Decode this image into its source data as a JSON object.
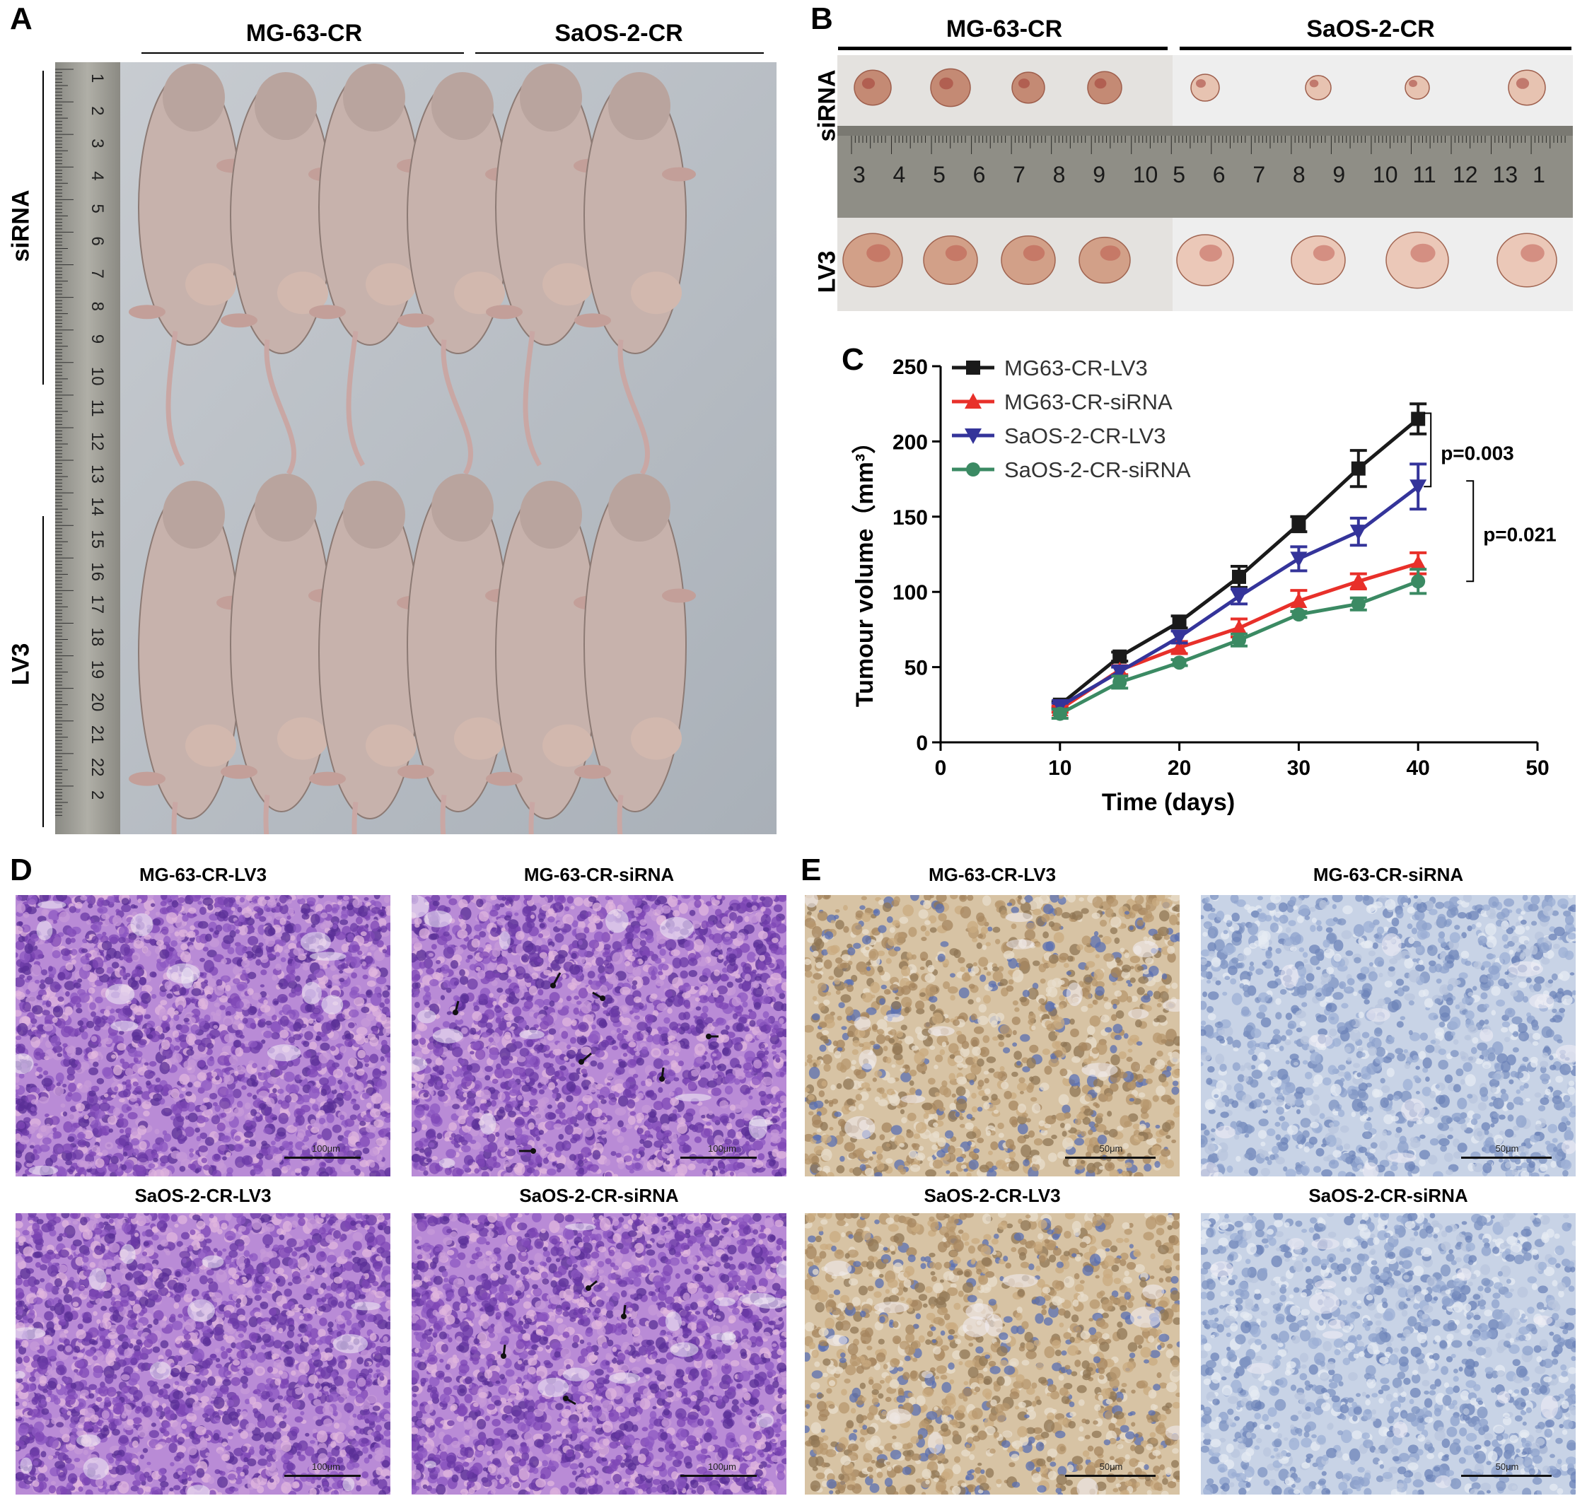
{
  "panelA": {
    "letter": "A",
    "groups": [
      "MG-63-CR",
      "SaOS-2-CR"
    ],
    "rows": [
      "siRNA",
      "LV3"
    ],
    "ruler_ticks": [
      "1",
      "2",
      "3",
      "4",
      "5",
      "6",
      "7",
      "8",
      "9",
      "10",
      "11",
      "12",
      "13",
      "14",
      "15",
      "16",
      "17",
      "18",
      "19",
      "20",
      "21",
      "22",
      "2"
    ]
  },
  "panelB": {
    "letter": "B",
    "groups": [
      "MG-63-CR",
      "SaOS-2-CR"
    ],
    "rows": [
      "siRNA",
      "LV3"
    ],
    "ruler_numbers": [
      "3",
      "4",
      "5",
      "6",
      "7",
      "8",
      "9",
      "10",
      "5",
      "6",
      "7",
      "8",
      "9",
      "10",
      "11",
      "12",
      "13",
      "1"
    ]
  },
  "panelC": {
    "letter": "C",
    "p_values": [
      "p=0.003",
      "p=0.021"
    ]
  },
  "panelD": {
    "letter": "D",
    "titles": [
      "MG-63-CR-LV3",
      "MG-63-CR-siRNA",
      "SaOS-2-CR-LV3",
      "SaOS-2-CR-siRNA"
    ],
    "scale": "100μm"
  },
  "panelE": {
    "letter": "E",
    "titles": [
      "MG-63-CR-LV3",
      "MG-63-CR-siRNA",
      "SaOS-2-CR-LV3",
      "SaOS-2-CR-siRNA"
    ],
    "scale": "50μm"
  },
  "colors": {
    "he_stain": "#b98bd6",
    "ihc_positive": "#d7c3a4",
    "ihc_negative": "#c8d3e6",
    "mouse_skin": "#c7b2ac"
  },
  "chart_data": {
    "type": "line",
    "xlabel": "Time (days)",
    "ylabel": "Tumour volume（mm³）",
    "xlim": [
      0,
      50
    ],
    "ylim": [
      0,
      250
    ],
    "xticks": [
      0,
      10,
      20,
      30,
      40,
      50
    ],
    "yticks": [
      0,
      50,
      100,
      150,
      200,
      250
    ],
    "x": [
      10,
      15,
      20,
      25,
      30,
      35,
      40
    ],
    "legend": "top-left",
    "series": [
      {
        "name": "MG63-CR-LV3",
        "color": "#1a1a1a",
        "marker": "square",
        "values": [
          25,
          57,
          80,
          110,
          145,
          182,
          215
        ],
        "errors": [
          2,
          3,
          4,
          7,
          5,
          12,
          10
        ]
      },
      {
        "name": "MG63-CR-siRNA",
        "color": "#e8302a",
        "marker": "triangle-up",
        "values": [
          22,
          48,
          63,
          76,
          94,
          107,
          119
        ],
        "errors": [
          2,
          3,
          4,
          6,
          7,
          5,
          7
        ]
      },
      {
        "name": "SaOS-2-CR-LV3",
        "color": "#34349a",
        "marker": "triangle-down",
        "values": [
          24,
          47,
          70,
          97,
          122,
          140,
          170
        ],
        "errors": [
          2,
          3,
          4,
          5,
          8,
          9,
          15
        ]
      },
      {
        "name": "SaOS-2-CR-siRNA",
        "color": "#3b8a63",
        "marker": "circle",
        "values": [
          19,
          40,
          53,
          68,
          85,
          92,
          107
        ],
        "errors": [
          3,
          4,
          2,
          4,
          2,
          4,
          8
        ]
      }
    ],
    "brackets": [
      {
        "label": "p=0.003",
        "from_series": 0,
        "to_series": 2,
        "at_x": 40
      },
      {
        "label": "p=0.021",
        "from_series": 2,
        "to_series": 3,
        "at_x": 40
      }
    ]
  }
}
